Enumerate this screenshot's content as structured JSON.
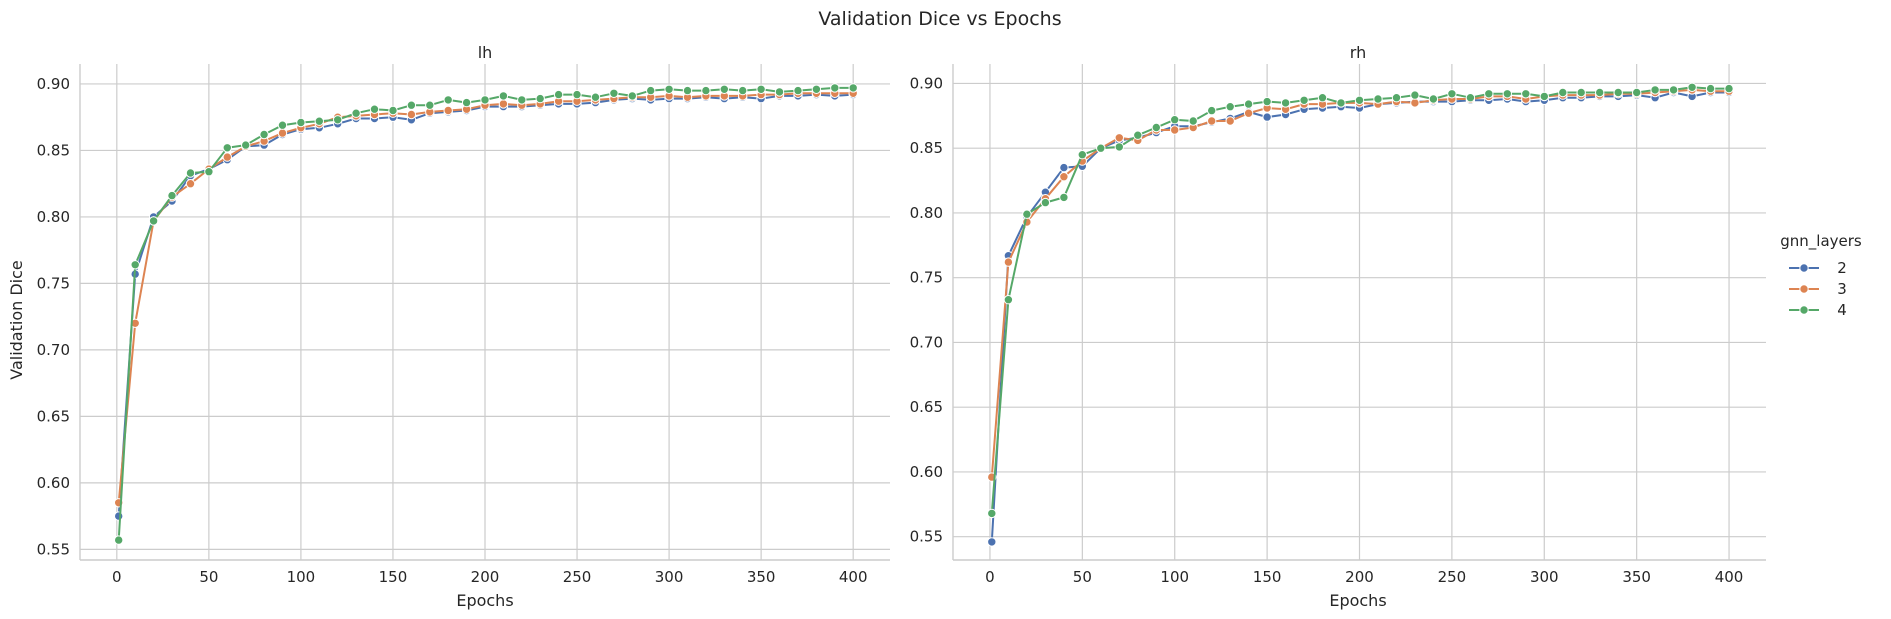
{
  "figure": {
    "title": "Validation Dice vs Epochs",
    "legend_title": "gnn_layers"
  },
  "colors": {
    "2": "#4c72b0",
    "3": "#dd8452",
    "4": "#55a868"
  },
  "chart_data": [
    {
      "type": "line",
      "title": "lh",
      "xlabel": "Epochs",
      "ylabel": "Validation Dice",
      "xlim": [
        -20,
        420
      ],
      "ylim": [
        0.542,
        0.915
      ],
      "xticks": [
        0,
        50,
        100,
        150,
        200,
        250,
        300,
        350,
        400
      ],
      "yticks": [
        0.55,
        0.6,
        0.65,
        0.7,
        0.75,
        0.8,
        0.85,
        0.9
      ],
      "grid": true,
      "x": [
        1,
        10,
        20,
        30,
        40,
        50,
        60,
        70,
        80,
        90,
        100,
        110,
        120,
        130,
        140,
        150,
        160,
        170,
        180,
        190,
        200,
        210,
        220,
        230,
        240,
        250,
        260,
        270,
        280,
        290,
        300,
        310,
        320,
        330,
        340,
        350,
        360,
        370,
        380,
        390,
        400
      ],
      "series": [
        {
          "name": "2",
          "values": [
            0.575,
            0.757,
            0.8,
            0.812,
            0.831,
            0.836,
            0.843,
            0.853,
            0.854,
            0.862,
            0.866,
            0.867,
            0.87,
            0.874,
            0.874,
            0.875,
            0.873,
            0.878,
            0.879,
            0.88,
            0.883,
            0.883,
            0.883,
            0.884,
            0.885,
            0.885,
            0.886,
            0.888,
            0.889,
            0.888,
            0.889,
            0.889,
            0.89,
            0.889,
            0.89,
            0.889,
            0.891,
            0.891,
            0.892,
            0.891,
            0.892
          ]
        },
        {
          "name": "3",
          "values": [
            0.585,
            0.72,
            0.797,
            0.815,
            0.825,
            0.836,
            0.845,
            0.853,
            0.857,
            0.863,
            0.867,
            0.87,
            0.875,
            0.876,
            0.877,
            0.878,
            0.877,
            0.879,
            0.88,
            0.881,
            0.884,
            0.885,
            0.884,
            0.885,
            0.887,
            0.887,
            0.888,
            0.889,
            0.89,
            0.89,
            0.891,
            0.89,
            0.891,
            0.891,
            0.891,
            0.892,
            0.892,
            0.893,
            0.893,
            0.893,
            0.893
          ]
        },
        {
          "name": "4",
          "values": [
            0.557,
            0.764,
            0.797,
            0.816,
            0.833,
            0.834,
            0.852,
            0.854,
            0.862,
            0.869,
            0.871,
            0.872,
            0.873,
            0.878,
            0.881,
            0.88,
            0.884,
            0.884,
            0.888,
            0.886,
            0.888,
            0.891,
            0.888,
            0.889,
            0.892,
            0.892,
            0.89,
            0.893,
            0.891,
            0.895,
            0.896,
            0.895,
            0.895,
            0.896,
            0.895,
            0.896,
            0.894,
            0.895,
            0.896,
            0.897,
            0.897
          ]
        }
      ]
    },
    {
      "type": "line",
      "title": "rh",
      "xlabel": "Epochs",
      "ylabel": "",
      "xlim": [
        -20,
        420
      ],
      "ylim": [
        0.532,
        0.915
      ],
      "xticks": [
        0,
        50,
        100,
        150,
        200,
        250,
        300,
        350,
        400
      ],
      "yticks": [
        0.55,
        0.6,
        0.65,
        0.7,
        0.75,
        0.8,
        0.85,
        0.9
      ],
      "grid": true,
      "x": [
        1,
        10,
        20,
        30,
        40,
        50,
        60,
        70,
        80,
        90,
        100,
        110,
        120,
        130,
        140,
        150,
        160,
        170,
        180,
        190,
        200,
        210,
        220,
        230,
        240,
        250,
        260,
        270,
        280,
        290,
        300,
        310,
        320,
        330,
        340,
        350,
        360,
        370,
        380,
        390,
        400
      ],
      "series": [
        {
          "name": "2",
          "values": [
            0.546,
            0.767,
            0.797,
            0.816,
            0.835,
            0.836,
            0.85,
            0.856,
            0.858,
            0.862,
            0.867,
            0.867,
            0.87,
            0.873,
            0.878,
            0.874,
            0.876,
            0.88,
            0.881,
            0.882,
            0.881,
            0.884,
            0.885,
            0.886,
            0.886,
            0.886,
            0.887,
            0.887,
            0.888,
            0.886,
            0.887,
            0.889,
            0.889,
            0.89,
            0.89,
            0.891,
            0.889,
            0.893,
            0.89,
            0.893,
            0.893
          ]
        },
        {
          "name": "3",
          "values": [
            0.596,
            0.762,
            0.793,
            0.811,
            0.828,
            0.84,
            0.85,
            0.858,
            0.856,
            0.864,
            0.864,
            0.866,
            0.871,
            0.871,
            0.877,
            0.881,
            0.88,
            0.884,
            0.884,
            0.885,
            0.885,
            0.884,
            0.886,
            0.885,
            0.887,
            0.888,
            0.888,
            0.89,
            0.89,
            0.888,
            0.89,
            0.891,
            0.891,
            0.891,
            0.892,
            0.892,
            0.893,
            0.894,
            0.895,
            0.894,
            0.894
          ]
        },
        {
          "name": "4",
          "values": [
            0.568,
            0.733,
            0.799,
            0.808,
            0.812,
            0.845,
            0.85,
            0.851,
            0.86,
            0.866,
            0.872,
            0.871,
            0.879,
            0.882,
            0.884,
            0.886,
            0.885,
            0.887,
            0.889,
            0.885,
            0.887,
            0.888,
            0.889,
            0.891,
            0.888,
            0.892,
            0.889,
            0.892,
            0.892,
            0.892,
            0.89,
            0.893,
            0.893,
            0.893,
            0.893,
            0.893,
            0.895,
            0.895,
            0.897,
            0.896,
            0.896
          ]
        }
      ]
    }
  ]
}
